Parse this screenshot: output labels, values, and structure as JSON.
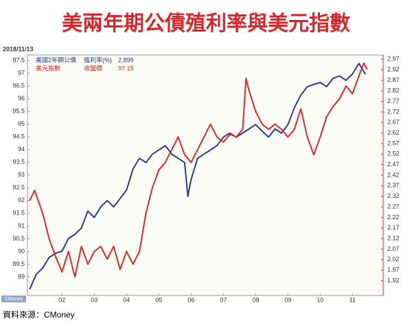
{
  "chart_data": {
    "type": "line",
    "title": "美兩年期公債殖利率與美元指數",
    "date_label": "2018/11/13",
    "source": "資料來源：CMoney",
    "watermark": "CMoney",
    "xlim": [
      0.93,
      11.95
    ],
    "xticks": [
      {
        "value": 2,
        "label": "02"
      },
      {
        "value": 3,
        "label": "03"
      },
      {
        "value": 4,
        "label": "04"
      },
      {
        "value": 5,
        "label": "05"
      },
      {
        "value": 6,
        "label": "06"
      },
      {
        "value": 7,
        "label": "07"
      },
      {
        "value": 8,
        "label": "08"
      },
      {
        "value": 9,
        "label": "09"
      },
      {
        "value": 10,
        "label": "10"
      },
      {
        "value": 11,
        "label": "11"
      }
    ],
    "ylim": [
      88.27,
      97.72
    ],
    "yticks": [
      89,
      89.5,
      90,
      90.5,
      91,
      91.5,
      92,
      92.5,
      93,
      93.5,
      94,
      94.5,
      95,
      95.5,
      96,
      96.5,
      97,
      97.5
    ],
    "y2lim": [
      1.85,
      2.99
    ],
    "y2ticks": [
      1.92,
      1.97,
      2.02,
      2.07,
      2.12,
      2.17,
      2.22,
      2.27,
      2.32,
      2.37,
      2.42,
      2.47,
      2.52,
      2.57,
      2.62,
      2.67,
      2.72,
      2.77,
      2.82,
      2.87,
      2.92,
      2.97
    ],
    "grid": false,
    "series": [
      {
        "name": "美國2年期公債",
        "legend_label": "殖利率(%)",
        "last": 2.899,
        "color": "#2b3b8f",
        "axis": "y2",
        "x": [
          1.0,
          1.2,
          1.4,
          1.6,
          1.8,
          2.0,
          2.2,
          2.4,
          2.6,
          2.8,
          3.0,
          3.2,
          3.4,
          3.6,
          3.8,
          4.0,
          4.2,
          4.4,
          4.6,
          4.8,
          5.0,
          5.2,
          5.4,
          5.6,
          5.8,
          5.9,
          6.0,
          6.2,
          6.4,
          6.6,
          6.8,
          7.0,
          7.2,
          7.4,
          7.6,
          7.8,
          8.0,
          8.2,
          8.4,
          8.6,
          8.8,
          9.0,
          9.2,
          9.4,
          9.6,
          9.8,
          10.0,
          10.2,
          10.4,
          10.6,
          10.8,
          11.0,
          11.2,
          11.4
        ],
        "values": [
          1.88,
          1.95,
          1.98,
          2.03,
          2.05,
          2.06,
          2.12,
          2.14,
          2.17,
          2.25,
          2.22,
          2.27,
          2.3,
          2.27,
          2.31,
          2.35,
          2.45,
          2.5,
          2.48,
          2.52,
          2.54,
          2.56,
          2.52,
          2.5,
          2.48,
          2.32,
          2.4,
          2.5,
          2.52,
          2.54,
          2.56,
          2.6,
          2.62,
          2.6,
          2.62,
          2.64,
          2.66,
          2.63,
          2.6,
          2.64,
          2.62,
          2.66,
          2.74,
          2.8,
          2.84,
          2.85,
          2.86,
          2.84,
          2.88,
          2.89,
          2.87,
          2.9,
          2.95,
          2.899
        ]
      },
      {
        "name": "美元指數",
        "legend_label": "收盤價",
        "last": 97.15,
        "color": "#e3262a",
        "x": [
          1.0,
          1.15,
          1.4,
          1.6,
          1.8,
          2.0,
          2.2,
          2.4,
          2.6,
          2.8,
          3.0,
          3.2,
          3.4,
          3.6,
          3.8,
          4.0,
          4.2,
          4.4,
          4.6,
          4.8,
          5.0,
          5.2,
          5.4,
          5.6,
          5.8,
          6.0,
          6.2,
          6.4,
          6.6,
          6.8,
          7.0,
          7.2,
          7.4,
          7.6,
          7.7,
          7.8,
          8.0,
          8.2,
          8.4,
          8.6,
          8.8,
          9.0,
          9.2,
          9.4,
          9.6,
          9.8,
          10.0,
          10.2,
          10.4,
          10.6,
          10.8,
          11.0,
          11.2,
          11.35,
          11.45
        ],
        "values": [
          92.0,
          92.4,
          91.5,
          90.5,
          89.8,
          89.2,
          90.0,
          89.0,
          90.2,
          89.5,
          90.0,
          90.2,
          89.7,
          90.2,
          89.3,
          90.0,
          89.5,
          90.0,
          91.5,
          92.5,
          93.2,
          93.5,
          94.0,
          94.5,
          93.8,
          93.5,
          94.0,
          94.5,
          95.0,
          94.5,
          94.3,
          94.6,
          94.5,
          94.8,
          96.8,
          96.3,
          95.5,
          95.0,
          94.8,
          95.0,
          94.8,
          94.5,
          94.8,
          95.6,
          94.5,
          93.8,
          94.5,
          95.3,
          95.7,
          96.0,
          96.5,
          96.2,
          96.9,
          97.4,
          97.15
        ]
      }
    ]
  }
}
